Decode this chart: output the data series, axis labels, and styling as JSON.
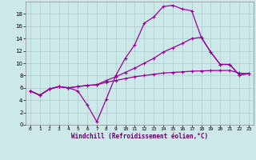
{
  "xlabel": "Windchill (Refroidissement éolien,°C)",
  "background_color": "#cce8e8",
  "grid_color": "#aacccc",
  "line_color": "#990099",
  "xlim": [
    -0.5,
    23.5
  ],
  "ylim": [
    0,
    20
  ],
  "xticks": [
    0,
    1,
    2,
    3,
    4,
    5,
    6,
    7,
    8,
    9,
    10,
    11,
    12,
    13,
    14,
    15,
    16,
    17,
    18,
    19,
    20,
    21,
    22,
    23
  ],
  "yticks": [
    0,
    2,
    4,
    6,
    8,
    10,
    12,
    14,
    16,
    18
  ],
  "line1_x": [
    0,
    1,
    2,
    3,
    4,
    5,
    6,
    7,
    8,
    9,
    10,
    11,
    12,
    13,
    14,
    15,
    16,
    17,
    18,
    19,
    20,
    21,
    22,
    23
  ],
  "line1_y": [
    5.5,
    4.8,
    5.8,
    6.2,
    6.0,
    5.5,
    3.2,
    0.5,
    4.2,
    8.0,
    10.8,
    13.0,
    16.5,
    17.5,
    19.2,
    19.4,
    18.8,
    18.5,
    14.2,
    11.8,
    9.8,
    9.8,
    8.1,
    8.3
  ],
  "line2_x": [
    0,
    1,
    2,
    3,
    4,
    5,
    6,
    7,
    8,
    9,
    10,
    11,
    12,
    13,
    14,
    15,
    16,
    17,
    18,
    19,
    20,
    21,
    22,
    23
  ],
  "line2_y": [
    5.5,
    4.8,
    5.8,
    6.2,
    6.0,
    6.2,
    6.4,
    6.5,
    7.2,
    7.8,
    8.5,
    9.2,
    10.0,
    10.8,
    11.8,
    12.5,
    13.2,
    14.0,
    14.2,
    11.8,
    9.8,
    9.8,
    8.1,
    8.3
  ],
  "line3_x": [
    0,
    1,
    2,
    3,
    4,
    5,
    6,
    7,
    8,
    9,
    10,
    11,
    12,
    13,
    14,
    15,
    16,
    17,
    18,
    19,
    20,
    21,
    22,
    23
  ],
  "line3_y": [
    5.5,
    4.8,
    5.8,
    6.2,
    6.0,
    6.2,
    6.4,
    6.5,
    6.9,
    7.2,
    7.5,
    7.8,
    8.0,
    8.2,
    8.4,
    8.5,
    8.6,
    8.7,
    8.75,
    8.8,
    8.82,
    8.83,
    8.4,
    8.3
  ]
}
